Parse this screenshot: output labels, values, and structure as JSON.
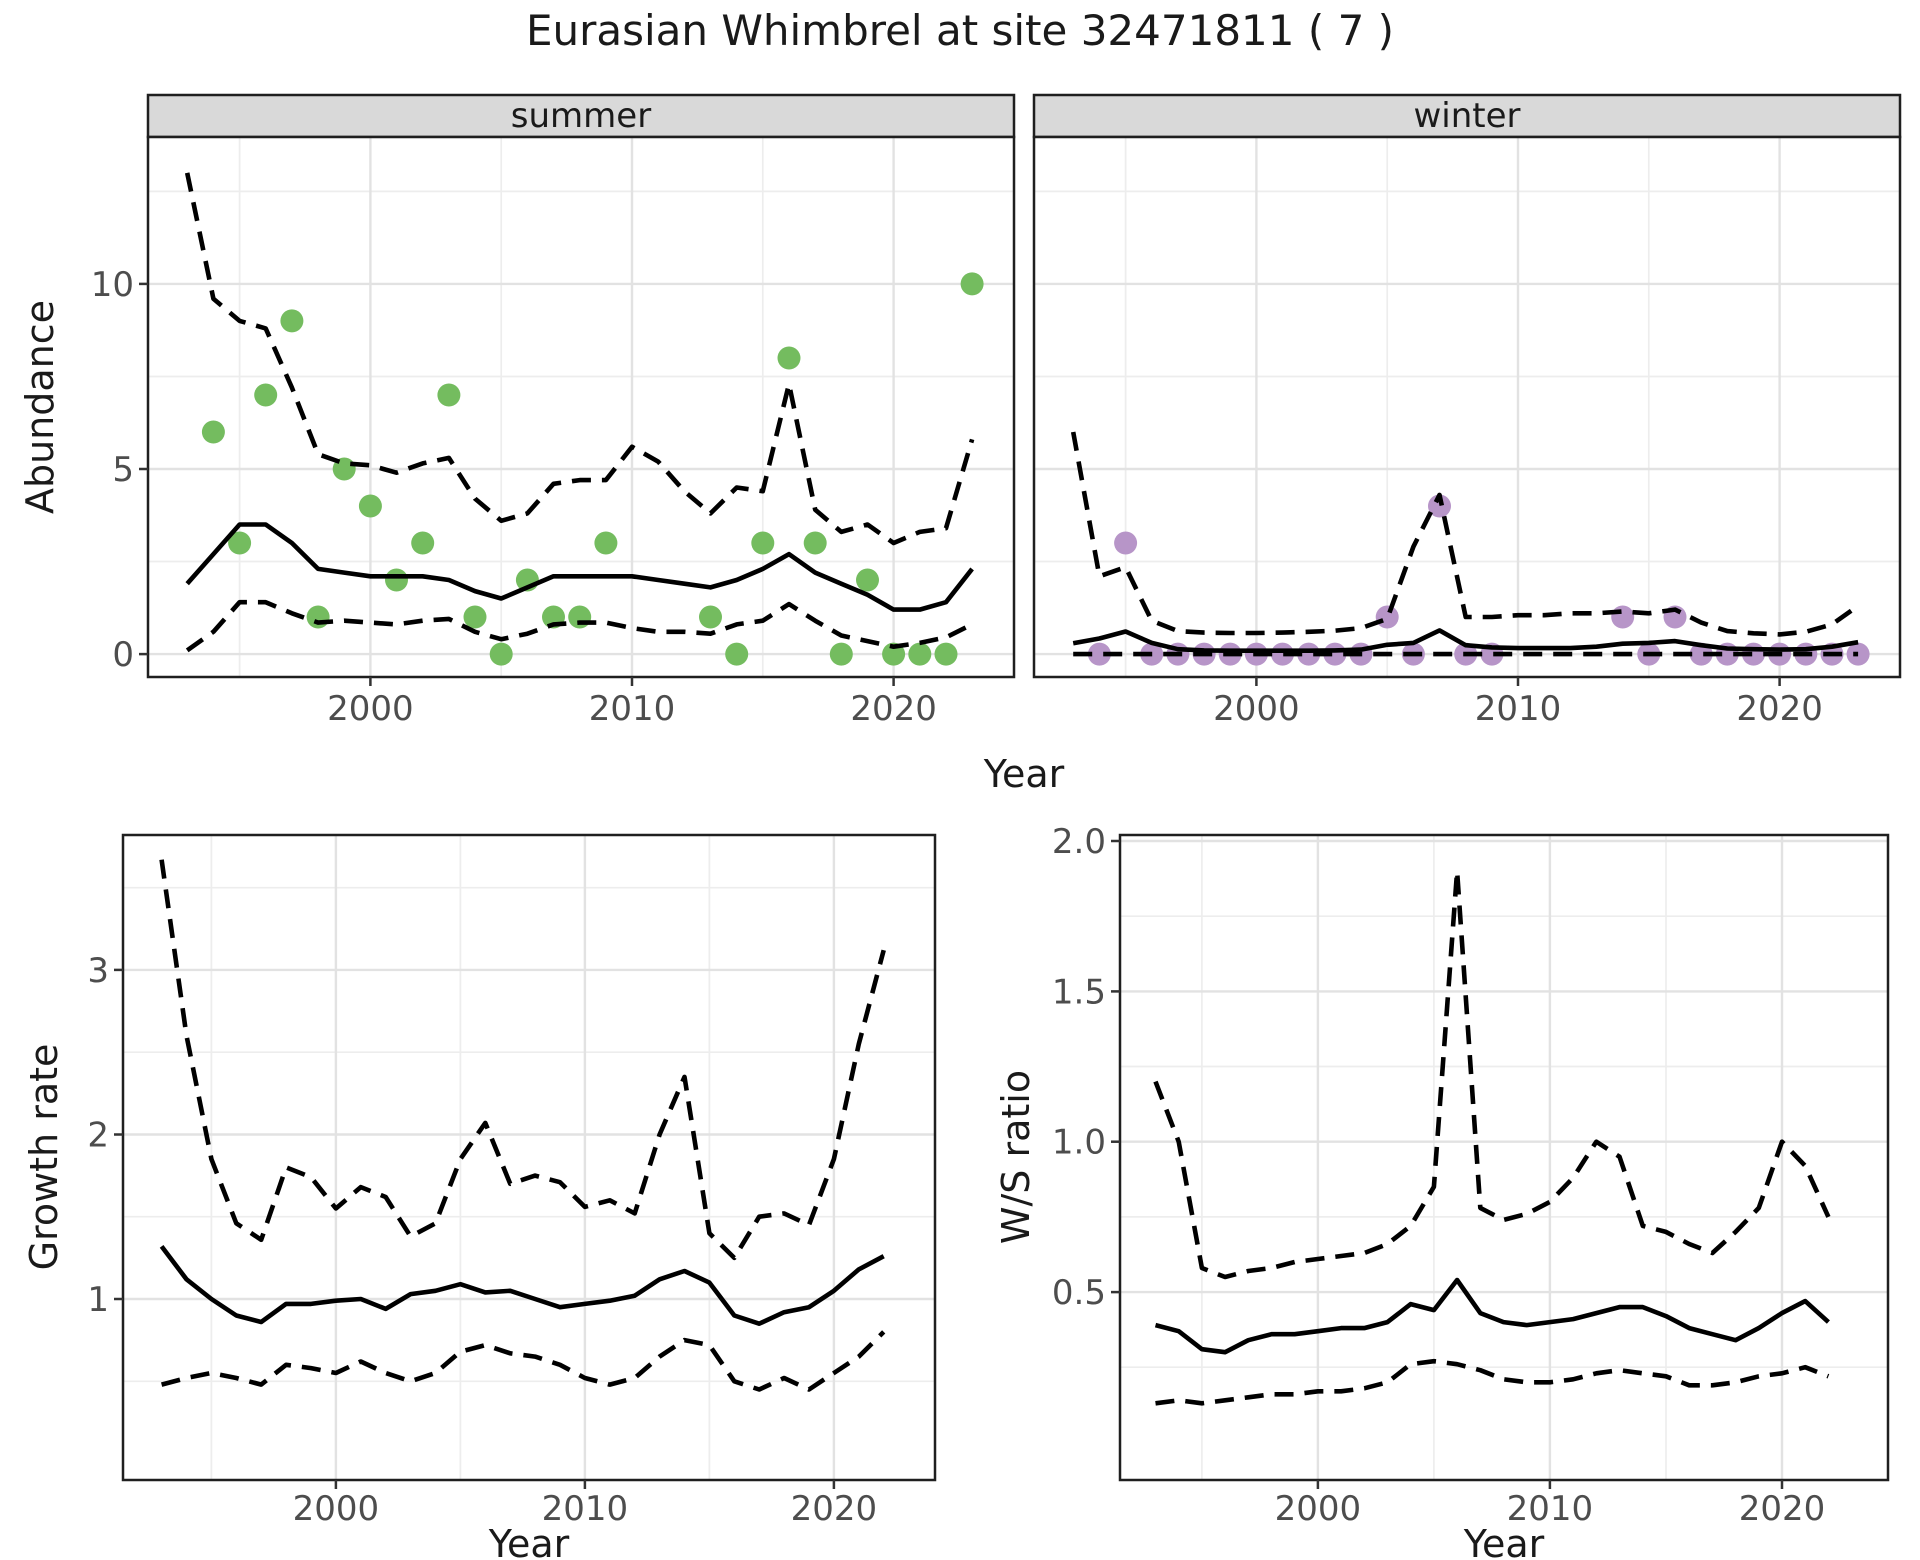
{
  "title": "Eurasian Whimbrel at site 32471811 ( 7 )",
  "colors": {
    "summer_point": "#74bc5f",
    "winter_point": "#b795c8",
    "line": "#000000",
    "strip_bg": "#d9d9d9",
    "panel_border": "#1f1f1f",
    "grid_major": "#e2e2e2",
    "grid_minor": "#ededed",
    "tick_text": "#4d4d4d",
    "text": "#1a1a1a"
  },
  "axes": {
    "top_ylabel": "Abundance",
    "top_xlabel": "Year",
    "bottom_left_ylabel": "Growth rate",
    "bottom_left_xlabel": "Year",
    "bottom_right_ylabel": "W/S ratio",
    "bottom_right_xlabel": "Year"
  },
  "chart_data": [
    {
      "id": "abundance-summer",
      "type": "scatter",
      "strip_label": "summer",
      "xlim": [
        1991.5,
        2024.6
      ],
      "ylim": [
        -0.62,
        13.97
      ],
      "xticks": [
        2000,
        2010,
        2020
      ],
      "xtick_labels": [
        "2000",
        "2010",
        "2020"
      ],
      "xminor": [
        1995,
        2005,
        2015
      ],
      "yticks": [
        0,
        5,
        10
      ],
      "ytick_labels": [
        "0",
        "5",
        "10"
      ],
      "yminor": [
        2.5,
        7.5,
        12.5
      ],
      "year_start": 1993,
      "mean": [
        1.9,
        2.7,
        3.5,
        3.5,
        3.0,
        2.3,
        2.2,
        2.1,
        2.1,
        2.1,
        2.0,
        1.7,
        1.5,
        1.8,
        2.1,
        2.1,
        2.1,
        2.1,
        2.0,
        1.9,
        1.8,
        2.0,
        2.3,
        2.7,
        2.2,
        1.9,
        1.6,
        1.2,
        1.2,
        1.4,
        2.3
      ],
      "upper": [
        13.0,
        9.6,
        9.0,
        8.8,
        7.2,
        5.4,
        5.15,
        5.1,
        4.9,
        5.15,
        5.3,
        4.2,
        3.6,
        3.8,
        4.6,
        4.7,
        4.7,
        5.6,
        5.2,
        4.4,
        3.8,
        4.5,
        4.4,
        7.3,
        3.9,
        3.3,
        3.5,
        3.0,
        3.3,
        3.4,
        5.8
      ],
      "lower": [
        0.1,
        0.6,
        1.4,
        1.4,
        1.1,
        0.85,
        0.9,
        0.85,
        0.8,
        0.9,
        0.95,
        0.6,
        0.4,
        0.55,
        0.8,
        0.85,
        0.85,
        0.7,
        0.6,
        0.6,
        0.55,
        0.8,
        0.9,
        1.35,
        0.9,
        0.5,
        0.35,
        0.2,
        0.3,
        0.45,
        0.8
      ],
      "points": {
        "years": [
          1994,
          1995,
          1996,
          1997,
          1998,
          1999,
          2000,
          2001,
          2002,
          2003,
          2004,
          2005,
          2006,
          2007,
          2008,
          2009,
          2013,
          2014,
          2015,
          2016,
          2017,
          2018,
          2019,
          2020,
          2021,
          2022,
          2023
        ],
        "values": [
          6,
          3,
          7,
          9,
          1,
          5,
          4,
          2,
          3,
          7,
          1,
          0,
          2,
          1,
          1,
          3,
          1,
          0,
          3,
          8,
          3,
          0,
          2,
          0,
          0,
          0,
          10
        ]
      }
    },
    {
      "id": "abundance-winter",
      "type": "scatter",
      "strip_label": "winter",
      "xlim": [
        1991.5,
        2024.6
      ],
      "ylim": [
        -0.62,
        13.97
      ],
      "xticks": [
        2000,
        2010,
        2020
      ],
      "xtick_labels": [
        "2000",
        "2010",
        "2020"
      ],
      "xminor": [
        1995,
        2005,
        2015
      ],
      "yticks": [
        0,
        5,
        10
      ],
      "ytick_labels": [
        "0",
        "5",
        "10"
      ],
      "yminor": [
        2.5,
        7.5,
        12.5
      ],
      "year_start": 1993,
      "mean": [
        0.29,
        0.42,
        0.61,
        0.3,
        0.13,
        0.1,
        0.09,
        0.09,
        0.09,
        0.09,
        0.1,
        0.12,
        0.25,
        0.3,
        0.64,
        0.24,
        0.18,
        0.16,
        0.16,
        0.16,
        0.2,
        0.28,
        0.3,
        0.35,
        0.24,
        0.15,
        0.13,
        0.12,
        0.13,
        0.2,
        0.32
      ],
      "upper": [
        6.0,
        2.1,
        2.35,
        0.9,
        0.62,
        0.58,
        0.57,
        0.57,
        0.58,
        0.6,
        0.63,
        0.7,
        0.95,
        2.9,
        4.3,
        1.0,
        1.0,
        1.05,
        1.05,
        1.1,
        1.1,
        1.15,
        1.1,
        1.2,
        0.85,
        0.62,
        0.56,
        0.53,
        0.6,
        0.8,
        1.3
      ],
      "lower": [
        0,
        0,
        0,
        0,
        0,
        0,
        0,
        0,
        0,
        0,
        0,
        0,
        0,
        0,
        0,
        0,
        0,
        0,
        0,
        0,
        0,
        0,
        0,
        0,
        0,
        0,
        0,
        0,
        0,
        0,
        0
      ],
      "points": {
        "years": [
          1994,
          1995,
          1996,
          1997,
          1998,
          1999,
          2000,
          2001,
          2002,
          2003,
          2004,
          2005,
          2006,
          2007,
          2008,
          2009,
          2014,
          2015,
          2016,
          2017,
          2018,
          2019,
          2020,
          2021,
          2022,
          2023
        ],
        "values": [
          0,
          3,
          0,
          0,
          0,
          0,
          0,
          0,
          0,
          0,
          0,
          1,
          0,
          4,
          0,
          0,
          1,
          0,
          1,
          0,
          0,
          0,
          0,
          0,
          0,
          0
        ]
      }
    },
    {
      "id": "growth-rate",
      "type": "line",
      "strip_label": null,
      "xlim": [
        1991.45,
        2024.06
      ],
      "ylim": [
        -0.1,
        3.82
      ],
      "xticks": [
        2000,
        2010,
        2020
      ],
      "xtick_labels": [
        "2000",
        "2010",
        "2020"
      ],
      "xminor": [
        1995,
        2005,
        2015
      ],
      "yticks": [
        1,
        2,
        3
      ],
      "ytick_labels": [
        "1",
        "2",
        "3"
      ],
      "yminor": [
        0.5,
        1.5,
        2.5,
        3.5
      ],
      "year_start": 1993,
      "mean": [
        1.32,
        1.12,
        1.0,
        0.9,
        0.86,
        0.97,
        0.97,
        0.99,
        1.0,
        0.94,
        1.03,
        1.05,
        1.09,
        1.04,
        1.05,
        1.0,
        0.95,
        0.97,
        0.99,
        1.02,
        1.12,
        1.17,
        1.1,
        0.9,
        0.85,
        0.92,
        0.95,
        1.05,
        1.18,
        1.26
      ],
      "upper": [
        3.67,
        2.6,
        1.85,
        1.46,
        1.36,
        1.8,
        1.74,
        1.55,
        1.68,
        1.62,
        1.38,
        1.46,
        1.85,
        2.07,
        1.7,
        1.75,
        1.71,
        1.56,
        1.6,
        1.52,
        2.0,
        2.35,
        1.4,
        1.25,
        1.5,
        1.52,
        1.45,
        1.85,
        2.55,
        3.12
      ],
      "lower": [
        0.48,
        0.52,
        0.55,
        0.52,
        0.48,
        0.6,
        0.58,
        0.55,
        0.62,
        0.55,
        0.5,
        0.55,
        0.68,
        0.72,
        0.67,
        0.65,
        0.6,
        0.52,
        0.48,
        0.52,
        0.65,
        0.75,
        0.72,
        0.5,
        0.45,
        0.52,
        0.45,
        0.55,
        0.65,
        0.8
      ],
      "points": null
    },
    {
      "id": "ws-ratio",
      "type": "line",
      "strip_label": null,
      "xlim": [
        1991.47,
        2024.57
      ],
      "ylim": [
        -0.125,
        2.02
      ],
      "xticks": [
        2000,
        2010,
        2020
      ],
      "xtick_labels": [
        "2000",
        "2010",
        "2020"
      ],
      "xminor": [
        1995,
        2005,
        2015
      ],
      "yticks": [
        0.5,
        1.0,
        1.5,
        2.0
      ],
      "ytick_labels": [
        "0.5",
        "1.0",
        "1.5",
        "2.0"
      ],
      "yminor": [
        0.25,
        0.75,
        1.25,
        1.75
      ],
      "year_start": 1993,
      "mean": [
        0.39,
        0.37,
        0.31,
        0.3,
        0.34,
        0.36,
        0.36,
        0.37,
        0.38,
        0.38,
        0.4,
        0.46,
        0.44,
        0.54,
        0.43,
        0.4,
        0.39,
        0.4,
        0.41,
        0.43,
        0.45,
        0.45,
        0.42,
        0.38,
        0.36,
        0.34,
        0.38,
        0.43,
        0.47,
        0.4
      ],
      "upper": [
        1.2,
        1.0,
        0.58,
        0.55,
        0.57,
        0.58,
        0.6,
        0.61,
        0.62,
        0.63,
        0.66,
        0.72,
        0.85,
        1.9,
        0.78,
        0.74,
        0.76,
        0.8,
        0.88,
        1.0,
        0.95,
        0.72,
        0.7,
        0.66,
        0.63,
        0.7,
        0.78,
        1.0,
        0.92,
        0.75
      ],
      "lower": [
        0.13,
        0.14,
        0.13,
        0.14,
        0.15,
        0.16,
        0.16,
        0.17,
        0.17,
        0.18,
        0.2,
        0.26,
        0.27,
        0.26,
        0.24,
        0.21,
        0.2,
        0.2,
        0.21,
        0.23,
        0.24,
        0.23,
        0.22,
        0.19,
        0.19,
        0.2,
        0.22,
        0.23,
        0.25,
        0.22
      ],
      "points": null
    }
  ]
}
